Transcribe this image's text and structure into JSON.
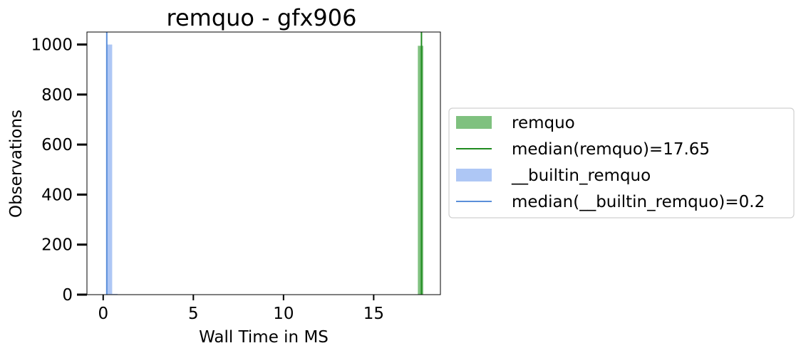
{
  "chart_data": {
    "type": "bar",
    "title": "remquo - gfx906",
    "xlabel": "Wall Time in MS",
    "ylabel": "Observations",
    "xlim": [
      -0.9,
      18.7
    ],
    "ylim": [
      0,
      1050
    ],
    "xticks": [
      0,
      5,
      10,
      15
    ],
    "yticks": [
      0,
      200,
      400,
      600,
      800,
      1000
    ],
    "grid": false,
    "legend_position": "outside-right",
    "series": [
      {
        "name": "remquo",
        "kind": "histogram",
        "color": "#7fc17f",
        "bins": [
          {
            "x0": 17.45,
            "x1": 17.75,
            "count": 995
          }
        ]
      },
      {
        "name": "__builtin_remquo",
        "kind": "histogram",
        "color": "#aec7f5",
        "bins": [
          {
            "x0": 0.2,
            "x1": 0.5,
            "count": 1000
          },
          {
            "x0": 0.5,
            "x1": 0.8,
            "count": 3
          }
        ]
      }
    ],
    "median_lines": [
      {
        "name": "median(remquo)=17.65",
        "value": 17.65,
        "color": "#1f8b1f"
      },
      {
        "name": "median(__builtin_remquo)=0.2",
        "value": 0.2,
        "color": "#5b8fd9"
      }
    ],
    "legend": [
      {
        "label": "remquo",
        "kind": "patch",
        "color": "#7fc17f"
      },
      {
        "label": "median(remquo)=17.65",
        "kind": "line",
        "color": "#1f8b1f"
      },
      {
        "label": "__builtin_remquo",
        "kind": "patch",
        "color": "#aec7f5"
      },
      {
        "label": "median(__builtin_remquo)=0.2",
        "kind": "line",
        "color": "#5b8fd9"
      }
    ]
  }
}
